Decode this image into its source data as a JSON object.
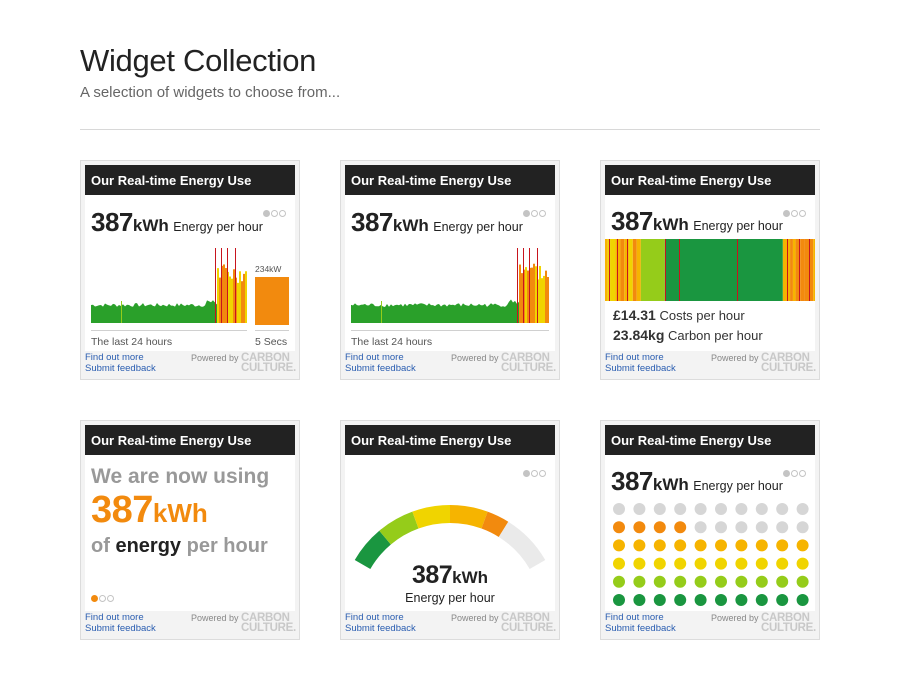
{
  "page": {
    "title": "Widget Collection",
    "subtitle": "A selection of widgets to choose from..."
  },
  "common": {
    "widget_title": "Our Real-time Energy Use",
    "find_out_more": "Find out more",
    "submit_feedback": "Submit feedback",
    "powered_by": "Powered by",
    "brand_line1": "CARBON",
    "brand_line2": "CULTURE."
  },
  "reading": {
    "value": "387",
    "unit": "kWh",
    "label": "Energy per hour"
  },
  "widget1": {
    "bar_label": "234kW",
    "caption_left": "The last 24 hours",
    "caption_right": "5 Secs"
  },
  "widget2": {
    "caption_left": "The last 24 hours"
  },
  "widget3": {
    "cost_value": "£14.31",
    "cost_label": "Costs per hour",
    "carbon_value": "23.84kg",
    "carbon_label": "Carbon per hour"
  },
  "widget4": {
    "line1": "We are now using",
    "value": "387",
    "unit": "kWh",
    "of": "of",
    "energy": "energy",
    "per_hour": "per hour"
  },
  "colors": {
    "dark_green": "#1a9640",
    "green": "#2aa02a",
    "lime": "#95cc1a",
    "yellow": "#f0d400",
    "amber": "#f6b400",
    "orange": "#f28a0e",
    "red": "#c8141e",
    "grey": "#d6d6d6"
  }
}
